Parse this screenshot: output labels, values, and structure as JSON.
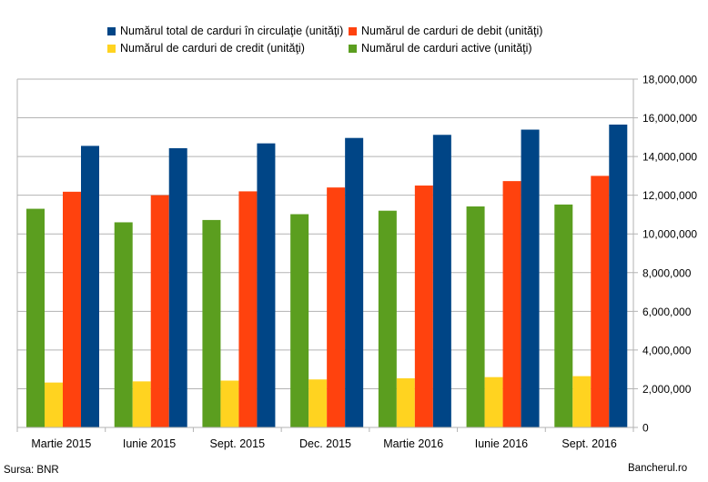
{
  "chart_data": {
    "type": "bar",
    "categories": [
      "Martie 2015",
      "Iunie 2015",
      "Sept. 2015",
      "Dec. 2015",
      "Martie 2016",
      "Iunie 2016",
      "Sept. 2016"
    ],
    "series": [
      {
        "name": "Numărul de carduri active (unităţi)",
        "color": "#5b9e1f",
        "values": [
          11300000,
          10600000,
          10720000,
          11020000,
          11200000,
          11420000,
          11520000
        ]
      },
      {
        "name": "Numărul de carduri de credit (unităţi)",
        "color": "#ffd320",
        "values": [
          2320000,
          2380000,
          2420000,
          2480000,
          2540000,
          2600000,
          2650000
        ]
      },
      {
        "name": "Numărul de carduri de debit (unităţi)",
        "color": "#ff420e",
        "values": [
          12180000,
          12000000,
          12200000,
          12400000,
          12500000,
          12730000,
          13000000
        ]
      },
      {
        "name": "Numărul total de carduri în circulaţie (unităţi)",
        "color": "#004586",
        "values": [
          14550000,
          14430000,
          14680000,
          14960000,
          15120000,
          15390000,
          15650000
        ]
      }
    ],
    "ylim": [
      0,
      18000000
    ],
    "yticks": [
      "0",
      "2,000,000",
      "4,000,000",
      "6,000,000",
      "8,000,000",
      "10,000,000",
      "12,000,000",
      "14,000,000",
      "16,000,000",
      "18,000,000"
    ],
    "ytick_values": [
      0,
      2000000,
      4000000,
      6000000,
      8000000,
      10000000,
      12000000,
      14000000,
      16000000,
      18000000
    ],
    "y_axis_side": "right",
    "grid": true,
    "legend_position": "top"
  },
  "footer": {
    "source": "Sursa: BNR",
    "brand": "Bancherul.ro"
  }
}
